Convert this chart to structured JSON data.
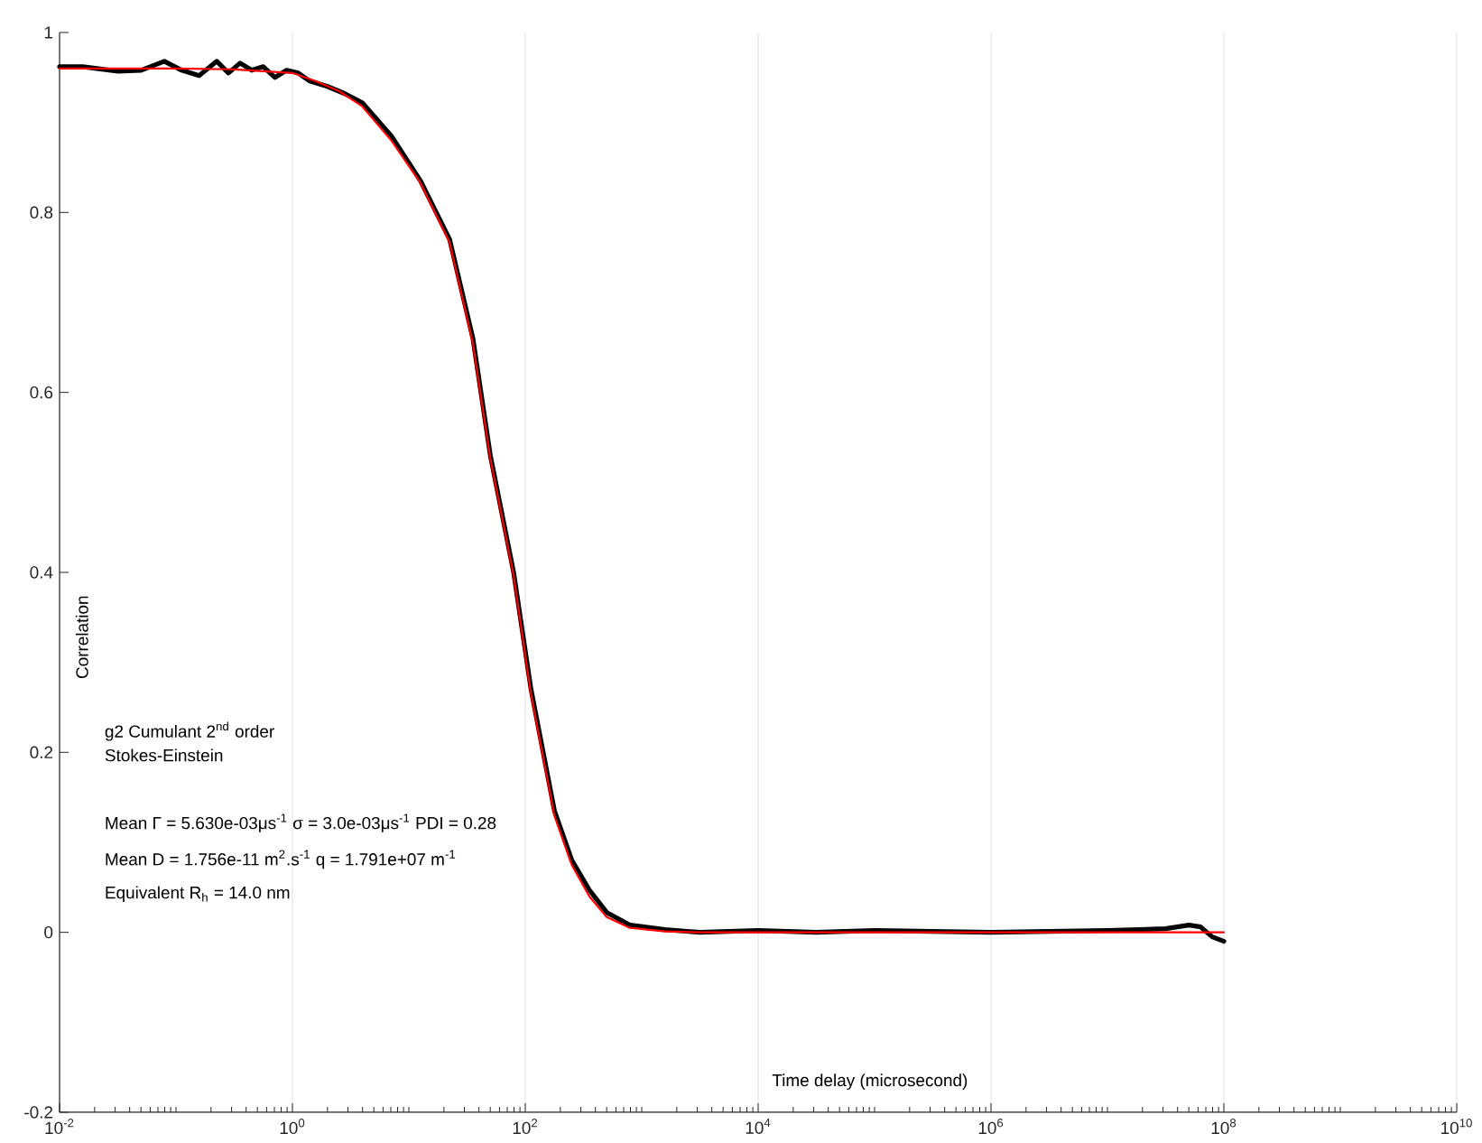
{
  "chart_data": {
    "type": "line",
    "xlabel": "Time delay (microsecond)",
    "ylabel": "Correlation",
    "log": "x",
    "grid": "x",
    "marker": "none",
    "line_style": "solid",
    "xlim": [
      0.01,
      10000000000
    ],
    "ylim": [
      -0.2,
      1
    ],
    "xticks": [
      {
        "value": 0.01,
        "label": "10$^{-2}$"
      },
      {
        "value": 1,
        "label": "10$^{0}$"
      },
      {
        "value": 100,
        "label": "10$^{2}$"
      },
      {
        "value": 10000,
        "label": "10$^{4}$"
      },
      {
        "value": 1000000,
        "label": "10$^{6}$"
      },
      {
        "value": 100000000,
        "label": "10$^{8}$"
      },
      {
        "value": 10000000000,
        "label": "10$^{10}$"
      }
    ],
    "yticks": [
      -0.2,
      0,
      0.2,
      0.4,
      0.6,
      0.8,
      1
    ],
    "series": [
      {
        "color": "#000000",
        "x": [
          0.01,
          0.0158,
          0.0316,
          0.0501,
          0.0794,
          0.112,
          0.158,
          0.224,
          0.282,
          0.355,
          0.447,
          0.562,
          0.708,
          0.891,
          1.12,
          1.41,
          2.0,
          2.82,
          3.98,
          7.08,
          12.6,
          22.4,
          35.5,
          50.1,
          79.4,
          112,
          178,
          251,
          355,
          501,
          794,
          1585,
          3162,
          10000,
          31623,
          100000,
          1000000,
          10000000,
          31600000,
          50100000,
          63100000,
          79400000,
          100000000
        ],
        "values": [
          0.962,
          0.962,
          0.957,
          0.958,
          0.968,
          0.958,
          0.952,
          0.968,
          0.955,
          0.966,
          0.958,
          0.962,
          0.95,
          0.958,
          0.955,
          0.946,
          0.94,
          0.932,
          0.922,
          0.885,
          0.835,
          0.77,
          0.66,
          0.53,
          0.4,
          0.27,
          0.135,
          0.08,
          0.047,
          0.022,
          0.008,
          0.003,
          0.0,
          0.002,
          0.0,
          0.002,
          0.0,
          0.002,
          0.004,
          0.008,
          0.006,
          -0.005,
          -0.01
        ]
      },
      {
        "color": "#ff0000",
        "x": [
          0.01,
          0.1,
          0.316,
          1,
          1.58,
          2.51,
          3.98,
          7.08,
          12.6,
          22.4,
          35.5,
          50.1,
          79.4,
          112,
          178,
          251,
          355,
          501,
          794,
          1585,
          3162,
          100000000
        ],
        "values": [
          0.96,
          0.96,
          0.959,
          0.955,
          0.946,
          0.935,
          0.918,
          0.88,
          0.833,
          0.767,
          0.655,
          0.527,
          0.397,
          0.265,
          0.13,
          0.075,
          0.04,
          0.017,
          0.005,
          0.001,
          0.0,
          0.0
        ]
      }
    ],
    "annotations": [
      "g2 Cumulant 2$^{nd}$ order",
      "Stokes-Einstein",
      "Mean Γ = 5.630e-03μs$^{-1}$ σ = 3.0e-03μs$^{-1}$ PDI = 0.28",
      "Mean D = 1.756e-11 m$^{2}$.s$^{-1}$   q = 1.791e+07 m$^{-1}$",
      "Equivalent R$_{h}$ = 14.0 nm"
    ]
  }
}
